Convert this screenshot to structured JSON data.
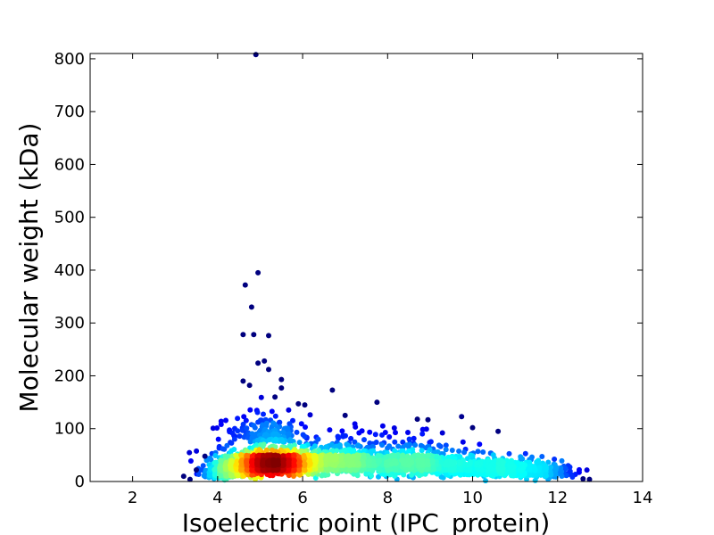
{
  "chart_data": {
    "type": "scatter",
    "title": "",
    "xlabel": "Isoelectric point (IPC_protein)",
    "ylabel": "Molecular weight (kDa)",
    "xlim": [
      1,
      14
    ],
    "ylim": [
      0,
      810
    ],
    "xticks": [
      2,
      4,
      6,
      8,
      10,
      12,
      14
    ],
    "yticks": [
      0,
      100,
      200,
      300,
      400,
      500,
      600,
      700,
      800
    ],
    "grid": false,
    "legend": "none",
    "colormap": "jet (point density)",
    "colors": [
      "#00007f",
      "#0000ff",
      "#0080ff",
      "#00ffff",
      "#80ff80",
      "#ffff00",
      "#ff8000",
      "#ff0000",
      "#800000"
    ],
    "outliers": [
      {
        "x": 4.9,
        "y": 808
      },
      {
        "x": 4.95,
        "y": 395
      },
      {
        "x": 4.65,
        "y": 372
      },
      {
        "x": 4.8,
        "y": 330
      },
      {
        "x": 4.6,
        "y": 278
      },
      {
        "x": 4.85,
        "y": 278
      },
      {
        "x": 5.2,
        "y": 276
      },
      {
        "x": 5.1,
        "y": 228
      },
      {
        "x": 4.95,
        "y": 224
      },
      {
        "x": 5.2,
        "y": 212
      },
      {
        "x": 5.5,
        "y": 193
      },
      {
        "x": 4.6,
        "y": 190
      },
      {
        "x": 4.75,
        "y": 182
      },
      {
        "x": 6.7,
        "y": 173
      },
      {
        "x": 5.5,
        "y": 177
      },
      {
        "x": 5.35,
        "y": 160
      },
      {
        "x": 7.75,
        "y": 150
      },
      {
        "x": 5.9,
        "y": 147
      },
      {
        "x": 6.05,
        "y": 145
      },
      {
        "x": 7.0,
        "y": 125
      },
      {
        "x": 8.7,
        "y": 118
      },
      {
        "x": 8.95,
        "y": 117
      },
      {
        "x": 10.0,
        "y": 102
      },
      {
        "x": 10.6,
        "y": 95
      },
      {
        "x": 12.6,
        "y": 5
      },
      {
        "x": 12.75,
        "y": 4
      },
      {
        "x": 3.2,
        "y": 10
      },
      {
        "x": 3.35,
        "y": 4
      },
      {
        "x": 3.5,
        "y": 22
      },
      {
        "x": 3.7,
        "y": 48
      }
    ],
    "clusters": [
      {
        "cx": 5.2,
        "cy": 30,
        "sx": 0.55,
        "sy": 16,
        "n": 1800
      },
      {
        "cx": 6.6,
        "cy": 32,
        "sx": 0.9,
        "sy": 17,
        "n": 900
      },
      {
        "cx": 8.7,
        "cy": 30,
        "sx": 0.9,
        "sy": 17,
        "n": 700
      },
      {
        "cx": 10.7,
        "cy": 22,
        "sx": 0.7,
        "sy": 13,
        "n": 400
      },
      {
        "cx": 11.6,
        "cy": 15,
        "sx": 0.4,
        "sy": 9,
        "n": 120
      },
      {
        "cx": 5.1,
        "cy": 90,
        "sx": 0.45,
        "sy": 25,
        "n": 160
      },
      {
        "cx": 7.5,
        "cy": 75,
        "sx": 1.1,
        "sy": 22,
        "n": 90
      },
      {
        "cx": 4.2,
        "cy": 14,
        "sx": 0.3,
        "sy": 9,
        "n": 150
      }
    ]
  }
}
